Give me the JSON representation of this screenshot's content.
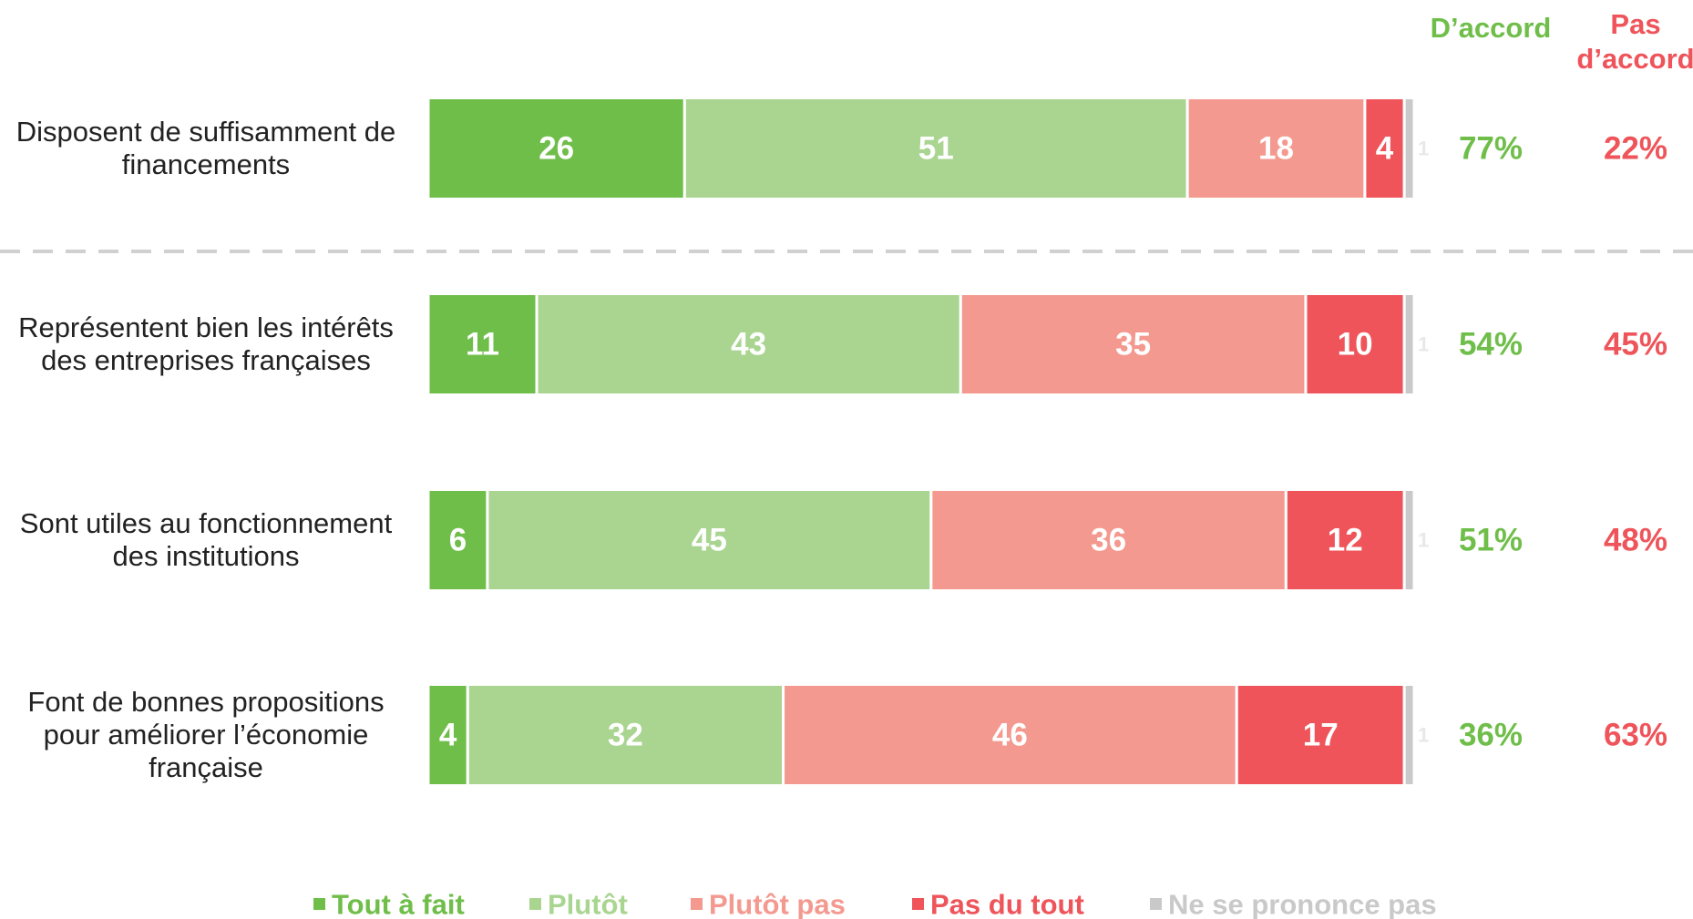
{
  "chart_data": {
    "type": "stacked_barh",
    "categories": [
      "Disposent de suffisamment de financements",
      "Représentent bien les intérêts des entreprises françaises",
      "Sont utiles au fonctionnement des institutions",
      "Font de bonnes propositions pour améliorer l’économie française"
    ],
    "series": [
      {
        "name": "Tout à fait",
        "color": "#6fbe4a",
        "values": [
          26,
          11,
          6,
          4
        ]
      },
      {
        "name": "Plutôt",
        "color": "#a9d591",
        "values": [
          51,
          43,
          45,
          32
        ]
      },
      {
        "name": "Plutôt pas",
        "color": "#f4998f",
        "values": [
          18,
          35,
          36,
          46
        ]
      },
      {
        "name": "Pas du tout",
        "color": "#ee545a",
        "values": [
          4,
          10,
          12,
          17
        ]
      },
      {
        "name": "Ne se prononce pas",
        "color": "#c9c9c9",
        "values": [
          1,
          1,
          1,
          1
        ]
      }
    ],
    "xlim": [
      0,
      100
    ],
    "totals": [
      {
        "name": "D’accord",
        "color": "#6fbe4a",
        "values": [
          77,
          54,
          51,
          36
        ],
        "value_labels": [
          "77%",
          "54%",
          "51%",
          "36%"
        ]
      },
      {
        "name": "Pas d’accord",
        "color": "#ee545a",
        "values": [
          22,
          45,
          48,
          63
        ],
        "value_labels": [
          "22%",
          "45%",
          "48%",
          "63%"
        ]
      }
    ],
    "legend": "bottom"
  }
}
